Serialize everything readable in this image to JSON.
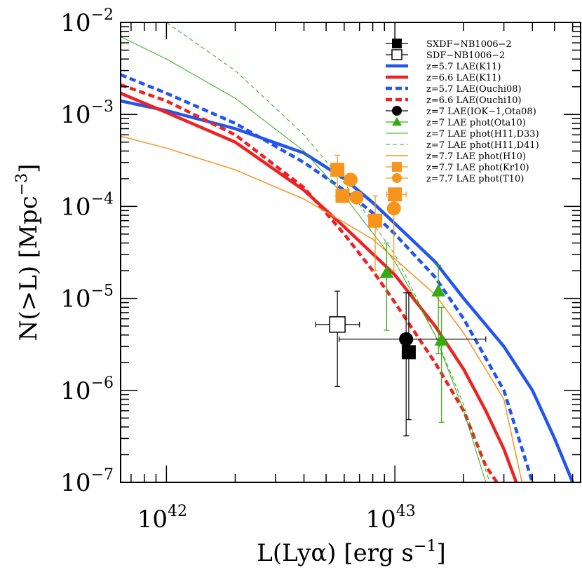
{
  "chart_data": {
    "type": "line",
    "xscale": "log",
    "yscale": "log",
    "xlim": [
      6.3e+41,
      6.5e+43
    ],
    "ylim": [
      1e-07,
      0.01
    ],
    "xlabel": "L(Lyα) [erg s",
    "xlabel_exp": "−1",
    "xlabel_close": "]",
    "ylabel": "N(>L) [Mpc",
    "ylabel_exp": "−3",
    "ylabel_close": "]",
    "x_ticks": [
      {
        "value": 1e+42,
        "base": "10",
        "exp": "42"
      },
      {
        "value": 1e+43,
        "base": "10",
        "exp": "43"
      }
    ],
    "y_ticks": [
      {
        "value": 0.01,
        "base": "10",
        "exp": "−2"
      },
      {
        "value": 0.001,
        "base": "10",
        "exp": "−3"
      },
      {
        "value": 0.0001,
        "base": "10",
        "exp": "−4"
      },
      {
        "value": 1e-05,
        "base": "10",
        "exp": "−5"
      },
      {
        "value": 1e-06,
        "base": "10",
        "exp": "−6"
      },
      {
        "value": 1e-07,
        "base": "10",
        "exp": "−7"
      }
    ],
    "legend_position": "top-right",
    "colors": {
      "blue": "#2255ee",
      "red": "#ee2222",
      "green": "#33aa11",
      "orange": "#f7941d",
      "black": "#000000"
    },
    "series": [
      {
        "name": "SXDF−NB1006−2",
        "kind": "points",
        "marker": "square-filled",
        "color": "black",
        "size": 20,
        "points": [
          {
            "x": 1.15e+43,
            "y": 2.6e-06,
            "ylo": 4.8e-07,
            "yhi": 1.15e-05
          }
        ]
      },
      {
        "name": "SDF−NB1006−2",
        "kind": "points",
        "marker": "square-open",
        "color": "black",
        "size": 22,
        "points": [
          {
            "x": 5.6e+42,
            "y": 5.2e-06,
            "xlo": 4.5e+42,
            "xhi": 7e+42,
            "ylo": 1.1e-06,
            "yhi": 1.2e-05
          }
        ]
      },
      {
        "name": "z=5.7 LAE(K11)",
        "kind": "line",
        "color": "blue",
        "dash": "solid",
        "width": 4.5,
        "points": [
          [
            6.3e+41,
            0.0014
          ],
          [
            1e+42,
            0.0011
          ],
          [
            2e+42,
            0.0007
          ],
          [
            4e+42,
            0.00038
          ],
          [
            6e+42,
            0.0002
          ],
          [
            8e+42,
            0.00011
          ],
          [
            1e+43,
            6.5e-05
          ],
          [
            1.5e+43,
            2.5e-05
          ],
          [
            2e+43,
            1e-05
          ],
          [
            3e+43,
            3e-06
          ],
          [
            4e+43,
            1e-06
          ],
          [
            5e+43,
            3e-07
          ],
          [
            6e+43,
            1e-07
          ]
        ]
      },
      {
        "name": "z=6.6 LAE(K11)",
        "kind": "line",
        "color": "red",
        "dash": "solid",
        "width": 4.5,
        "points": [
          [
            6.3e+41,
            0.0017
          ],
          [
            1e+42,
            0.00105
          ],
          [
            2e+42,
            0.0005
          ],
          [
            4e+42,
            0.00015
          ],
          [
            6e+42,
            6e-05
          ],
          [
            1e+43,
            1.8e-05
          ],
          [
            1.5e+43,
            5e-06
          ],
          [
            2e+43,
            1.7e-06
          ],
          [
            2.5e+43,
            6e-07
          ],
          [
            3e+43,
            2.3e-07
          ],
          [
            3.4e+43,
            1e-07
          ]
        ]
      },
      {
        "name": "z=5.7 LAE(Ouchi08)",
        "kind": "line",
        "color": "blue",
        "dash": "dashed",
        "width": 4.5,
        "points": [
          [
            6.3e+41,
            0.0027
          ],
          [
            1e+42,
            0.0017
          ],
          [
            2e+42,
            0.0008
          ],
          [
            4e+42,
            0.0003
          ],
          [
            6e+42,
            0.00015
          ],
          [
            8e+42,
            8.5e-05
          ],
          [
            1e+43,
            5e-05
          ],
          [
            1.5e+43,
            1.7e-05
          ],
          [
            2e+43,
            6e-06
          ],
          [
            3e+43,
            1e-06
          ],
          [
            4e+43,
            1e-07
          ]
        ]
      },
      {
        "name": "z=6.6 LAE(Ouchi10)",
        "kind": "line",
        "color": "red",
        "dash": "dashed",
        "width": 4.5,
        "points": [
          [
            6.3e+41,
            0.0021
          ],
          [
            1e+42,
            0.0014
          ],
          [
            2e+42,
            0.0006
          ],
          [
            4e+42,
            0.00016
          ],
          [
            6e+42,
            5e-05
          ],
          [
            8e+42,
            2e-05
          ],
          [
            1e+43,
            9e-06
          ],
          [
            1.5e+43,
            2e-06
          ],
          [
            2e+43,
            6e-07
          ],
          [
            2.5e+43,
            1.5e-07
          ],
          [
            2.8e+43,
            1e-07
          ]
        ]
      },
      {
        "name": "z=7 LAE(IOK−1,Ota08)",
        "kind": "points",
        "marker": "circle-filled",
        "color": "black",
        "size": 20,
        "points": [
          {
            "x": 1.12e+43,
            "y": 3.6e-06,
            "xlo": 5.7e+42,
            "xhi": 2.5e+43,
            "ylo": 3.2e-07,
            "yhi": 1.15e-05
          }
        ]
      },
      {
        "name": "z=7 LAE phot(Ota10)",
        "kind": "points",
        "marker": "triangle-filled",
        "color": "green",
        "size": 20,
        "points": [
          {
            "x": 9.2e+42,
            "y": 1.9e-05,
            "ylo": 4.5e-06,
            "yhi": 4e-05
          },
          {
            "x": 1.55e+43,
            "y": 1.2e-05,
            "ylo": 2.5e-06,
            "yhi": 2.3e-05
          },
          {
            "x": 1.6e+43,
            "y": 3.5e-06,
            "ylo": 4.5e-07,
            "yhi": 8e-06
          }
        ]
      },
      {
        "name": "z=7 LAE phot(H11,D33)",
        "kind": "line",
        "color": "green",
        "dash": "solid",
        "width": 1,
        "points": [
          [
            6.3e+41,
            0.007
          ],
          [
            1e+42,
            0.004
          ],
          [
            2e+42,
            0.0015
          ],
          [
            4e+42,
            0.0004
          ],
          [
            6e+42,
            0.00013
          ],
          [
            1e+43,
            2.5e-05
          ],
          [
            1.5e+43,
            4e-06
          ],
          [
            2e+43,
            6e-07
          ],
          [
            2.5e+43,
            1e-07
          ]
        ]
      },
      {
        "name": "z=7 LAE phot(H11,D41)",
        "kind": "line",
        "color": "green",
        "dash": "dashed",
        "width": 1,
        "points": [
          [
            1e+42,
            0.01
          ],
          [
            2e+42,
            0.003
          ],
          [
            4e+42,
            0.0006
          ],
          [
            6e+42,
            0.00018
          ],
          [
            1e+43,
            3e-05
          ],
          [
            1.5e+43,
            4e-06
          ],
          [
            2e+43,
            7e-07
          ],
          [
            2.6e+43,
            1e-07
          ]
        ]
      },
      {
        "name": "z=7.7 LAE phot(H10)",
        "kind": "line",
        "color": "orange",
        "dash": "solid",
        "width": 1.5,
        "points": [
          [
            6.3e+41,
            0.00058
          ],
          [
            1e+42,
            0.00043
          ],
          [
            2e+42,
            0.00025
          ],
          [
            4e+42,
            0.00012
          ],
          [
            8e+42,
            4.4e-05
          ],
          [
            1.5e+43,
            1.1e-05
          ],
          [
            2e+43,
            4.2e-06
          ],
          [
            3e+43,
            8e-07
          ],
          [
            3.6e+43,
            1e-07
          ]
        ]
      },
      {
        "name": "z=7.7 LAE phot(Kr10)",
        "kind": "points",
        "marker": "square-filled",
        "color": "orange",
        "size": 20,
        "points": [
          {
            "x": 5.6e+42,
            "y": 0.00025,
            "ylo": 0.00013,
            "yhi": 0.00036
          },
          {
            "x": 5.9e+42,
            "y": 0.00013
          },
          {
            "x": 8.2e+42,
            "y": 7e-05,
            "ylo": 2e-05,
            "yhi": 0.00013
          },
          {
            "x": 1e+43,
            "y": 0.000135,
            "xlo": 9.2e+42,
            "xhi": 1.12e+43
          }
        ]
      },
      {
        "name": "z=7.7 LAE phot(T10)",
        "kind": "points",
        "marker": "circle-filled",
        "color": "orange",
        "size": 20,
        "points": [
          {
            "x": 6.4e+42,
            "y": 0.000195
          },
          {
            "x": 6.8e+42,
            "y": 0.000125
          },
          {
            "x": 9.9e+42,
            "y": 9.5e-05,
            "ylo": 2e-05,
            "yhi": 0.00013
          }
        ]
      }
    ]
  }
}
